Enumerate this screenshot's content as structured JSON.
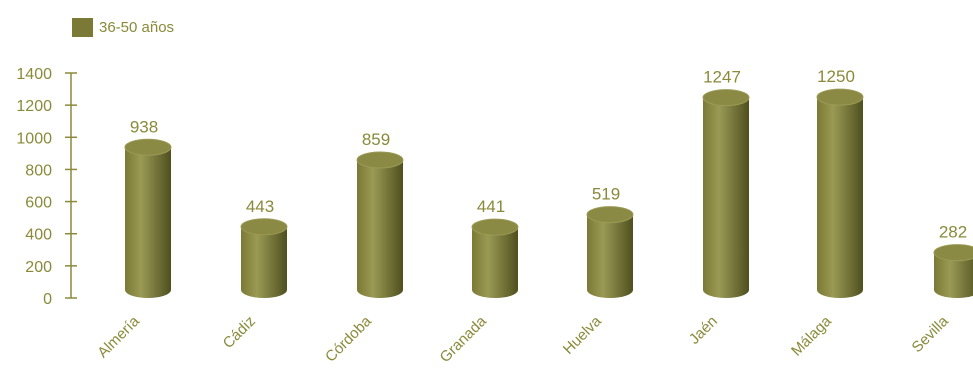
{
  "chart_data": {
    "type": "bar",
    "categories": [
      "Almería",
      "Cádiz",
      "Córdoba",
      "Granada",
      "Huelva",
      "Jaén",
      "Málaga",
      "Sevilla"
    ],
    "series": [
      {
        "name": "36-50 años",
        "values": [
          938,
          443,
          859,
          441,
          519,
          1247,
          1250,
          282
        ]
      }
    ],
    "data_labels": [
      "938",
      "443",
      "859",
      "441",
      "519",
      "1247",
      "1250",
      "282"
    ],
    "yticks": [
      "0",
      "200",
      "400",
      "600",
      "800",
      "1000",
      "1200",
      "1400"
    ],
    "ylim": [
      0,
      1400
    ],
    "legend_position": "top-left",
    "bar_shape": "cylinder",
    "colors": {
      "bar_light": "#9a9a55",
      "bar_mid": "#7a7a36",
      "bar_dark": "#4f4f1f",
      "bar_top": "#8a8a44",
      "text": "#8a8a3a",
      "axis": "#8a8a3a"
    }
  }
}
